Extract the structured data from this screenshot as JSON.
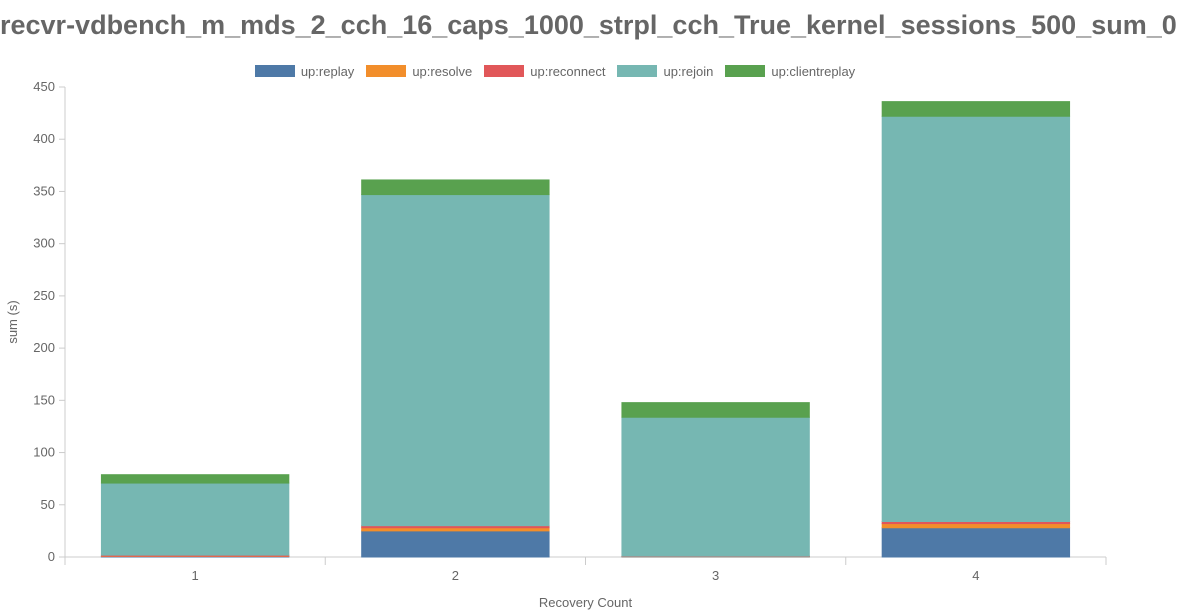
{
  "chart_data": {
    "type": "bar",
    "stacked": true,
    "title": "recvr-vdbench_m_mds_2_cch_16_caps_1000_strpl_cch_True_kernel_sessions_500_sum_0",
    "xlabel": "Recovery Count",
    "ylabel": "sum (s)",
    "categories": [
      "1",
      "2",
      "3",
      "4"
    ],
    "ylim": [
      0,
      450
    ],
    "yticks": [
      0,
      50,
      100,
      150,
      200,
      250,
      300,
      350,
      400,
      450
    ],
    "legend_position": "top-center",
    "grid": false,
    "series": [
      {
        "name": "up:replay",
        "color": "#4e79a7",
        "values": [
          0.5,
          25,
          0.3,
          28
        ]
      },
      {
        "name": "up:resolve",
        "color": "#f28e2b",
        "values": [
          0.3,
          3,
          0.2,
          4
        ]
      },
      {
        "name": "up:reconnect",
        "color": "#e15759",
        "values": [
          1,
          2,
          0.3,
          2
        ]
      },
      {
        "name": "up:rejoin",
        "color": "#76b7b2",
        "values": [
          69,
          317,
          133,
          388
        ]
      },
      {
        "name": "up:clientreplay",
        "color": "#59a14f",
        "values": [
          8,
          14,
          14,
          14
        ]
      }
    ]
  }
}
